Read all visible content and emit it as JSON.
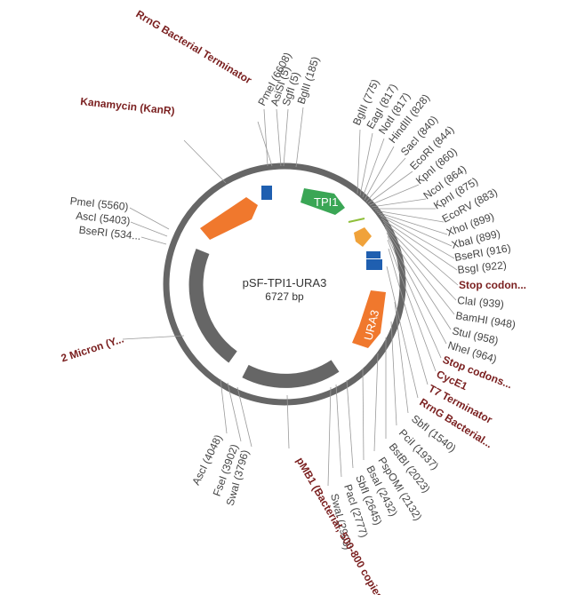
{
  "plasmid": {
    "name": "pSF-TPI1-URA3",
    "size": "6727 bp"
  },
  "features": [
    {
      "label": "TPI1",
      "color": "#3aa655"
    },
    {
      "label": "URA3",
      "color": "#f0782d"
    }
  ],
  "site_labels": [
    "RrnG Bacterial Terminator",
    "PmeI (6608)",
    "AsiSI (5)",
    "SgfI (5)",
    "BglII (185)",
    "Kanamycin (KanR)",
    "BglII (775)",
    "EagI (817)",
    "NotI (817)",
    "HindIII (828)",
    "SacI (840)",
    "EcoRI (844)",
    "KpnI (860)",
    "NcoI (864)",
    "KpnI (875)",
    "EcoRV (883)",
    "XhoI (899)",
    "XbaI (899)",
    "BseRI (916)",
    "BsgI (922)",
    "Stop codon...",
    "ClaI (939)",
    "BamHI (948)",
    "StuI (958)",
    "NheI (964)",
    "Stop codons...",
    "CycE1",
    "T7 Terminator",
    "RrnG Bacterial...",
    "SbfI (1540)",
    "PciI (1937)",
    "BstBI (2023)",
    "PspOMI (2132)",
    "BsaI (2432)",
    "SbfI (2645)",
    "PacI (2777)",
    "SwaI (2903)",
    "pMB1 (Bacterial, 500-800 copies)",
    "AscI (4048)",
    "FseI (3902)",
    "SwaI (3796)",
    "2 Micron (Y...",
    "PmeI (5560)",
    "AscI (5403)",
    "BseRI (534..."
  ]
}
